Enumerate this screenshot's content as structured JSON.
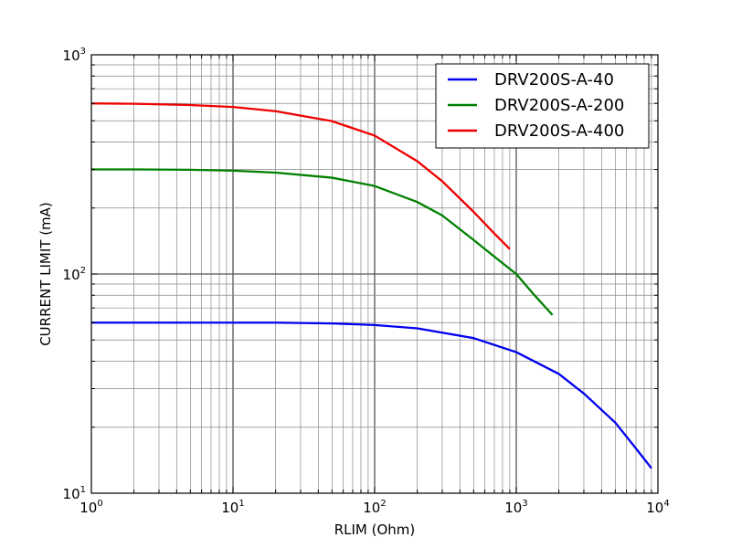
{
  "chart_data": {
    "type": "line",
    "xscale": "log",
    "yscale": "log",
    "xlim": [
      1,
      10000
    ],
    "ylim": [
      10,
      1000
    ],
    "xlabel": "RLIM (Ohm)",
    "ylabel": "CURRENT LIMIT (mA)",
    "grid": true,
    "legend_position": "top-right",
    "x_ticks": [
      {
        "value": 1,
        "base": "10",
        "exp": "0"
      },
      {
        "value": 10,
        "base": "10",
        "exp": "1"
      },
      {
        "value": 100,
        "base": "10",
        "exp": "2"
      },
      {
        "value": 1000,
        "base": "10",
        "exp": "3"
      },
      {
        "value": 10000,
        "base": "10",
        "exp": "4"
      }
    ],
    "y_ticks": [
      {
        "value": 10,
        "base": "10",
        "exp": "1"
      },
      {
        "value": 100,
        "base": "10",
        "exp": "2"
      },
      {
        "value": 1000,
        "base": "10",
        "exp": "3"
      }
    ],
    "series": [
      {
        "name": "DRV200S-A-40",
        "color": "#0000ee",
        "x": [
          1,
          2,
          5,
          10,
          20,
          50,
          100,
          200,
          500,
          1000,
          2000,
          3000,
          5000,
          7000,
          9000
        ],
        "y": [
          60,
          60,
          60,
          60,
          60,
          59.5,
          58.5,
          56.5,
          51,
          44,
          35,
          28.5,
          21,
          16,
          13
        ]
      },
      {
        "name": "DRV200S-A-200",
        "color": "#008000",
        "x": [
          1,
          2,
          5,
          10,
          20,
          50,
          100,
          200,
          300,
          500,
          700,
          1000,
          1300,
          1800
        ],
        "y": [
          300,
          300,
          299,
          296,
          290,
          275,
          252,
          213,
          185,
          143,
          120,
          100,
          82,
          65
        ]
      },
      {
        "name": "DRV200S-A-400",
        "color": "#ee0000",
        "x": [
          1,
          2,
          5,
          10,
          20,
          50,
          100,
          200,
          300,
          500,
          700,
          900
        ],
        "y": [
          600,
          598,
          590,
          578,
          553,
          498,
          428,
          327,
          265,
          192,
          153,
          130
        ]
      }
    ]
  }
}
